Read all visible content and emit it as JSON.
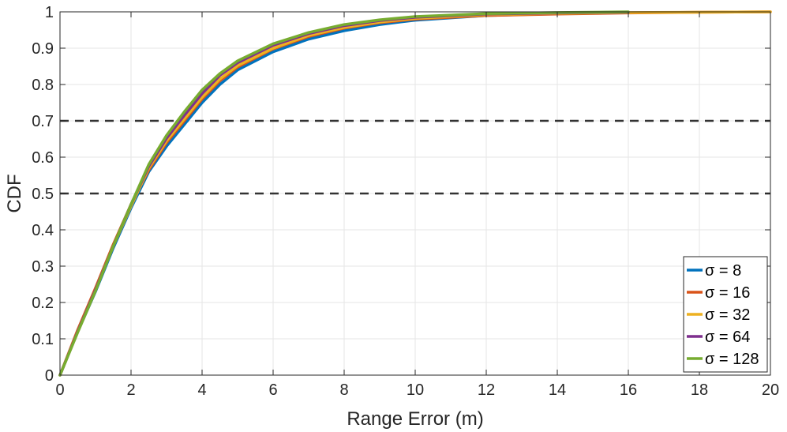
{
  "chart_data": {
    "type": "line",
    "xlabel": "Range Error (m)",
    "ylabel": "CDF",
    "xlim": [
      0,
      20
    ],
    "ylim": [
      0,
      1
    ],
    "x_ticks": [
      0,
      2,
      4,
      6,
      8,
      10,
      12,
      14,
      16,
      18,
      20
    ],
    "y_ticks": [
      0,
      0.1,
      0.2,
      0.3,
      0.4,
      0.5,
      0.6,
      0.7,
      0.8,
      0.9,
      1
    ],
    "grid": true,
    "legend_position": "bottom-right",
    "reference_lines": [
      {
        "y": 0.5,
        "style": "dashed",
        "color": "#333333"
      },
      {
        "y": 0.7,
        "style": "dashed",
        "color": "#333333"
      }
    ],
    "series": [
      {
        "name": "σ = 8",
        "color": "#0072BD",
        "x": [
          0,
          0.5,
          1,
          1.5,
          2,
          2.5,
          3,
          3.5,
          4,
          4.5,
          5,
          6,
          7,
          8,
          9,
          10,
          12,
          14,
          16
        ],
        "y": [
          0,
          0.12,
          0.23,
          0.35,
          0.46,
          0.56,
          0.63,
          0.69,
          0.75,
          0.8,
          0.84,
          0.89,
          0.925,
          0.948,
          0.965,
          0.977,
          0.99,
          0.995,
          0.998
        ]
      },
      {
        "name": "σ = 16",
        "color": "#D95319",
        "x": [
          0,
          0.5,
          1,
          1.5,
          2,
          2.5,
          3,
          3.5,
          4,
          4.5,
          5,
          6,
          7,
          8,
          9,
          10,
          12,
          14,
          16,
          18,
          20
        ],
        "y": [
          0,
          0.125,
          0.24,
          0.36,
          0.47,
          0.565,
          0.64,
          0.7,
          0.76,
          0.81,
          0.848,
          0.898,
          0.932,
          0.955,
          0.97,
          0.98,
          0.99,
          0.994,
          0.997,
          0.999,
          1
        ]
      },
      {
        "name": "σ = 32",
        "color": "#EDB120",
        "x": [
          0,
          0.5,
          1,
          1.5,
          2,
          2.5,
          3,
          3.5,
          4,
          4.5,
          5,
          6,
          7,
          8,
          9,
          10,
          12,
          14,
          16,
          18,
          20
        ],
        "y": [
          0,
          0.12,
          0.235,
          0.355,
          0.465,
          0.57,
          0.645,
          0.705,
          0.765,
          0.815,
          0.852,
          0.9,
          0.935,
          0.957,
          0.972,
          0.982,
          0.992,
          0.996,
          0.998,
          0.999,
          1
        ]
      },
      {
        "name": "σ = 64",
        "color": "#7E2F8E",
        "x": [
          0,
          0.5,
          1,
          1.5,
          2,
          2.5,
          3,
          3.5,
          4,
          4.5,
          5,
          6,
          7,
          8,
          9,
          10,
          12,
          14,
          16
        ],
        "y": [
          0,
          0.12,
          0.235,
          0.355,
          0.47,
          0.575,
          0.652,
          0.715,
          0.775,
          0.825,
          0.86,
          0.908,
          0.94,
          0.962,
          0.976,
          0.985,
          0.994,
          0.997,
          0.999
        ]
      },
      {
        "name": "σ = 128",
        "color": "#77AC30",
        "x": [
          0,
          0.5,
          1,
          1.5,
          2,
          2.5,
          3,
          3.5,
          4,
          4.5,
          5,
          6,
          7,
          8,
          9,
          10,
          12,
          14,
          16
        ],
        "y": [
          0,
          0.118,
          0.232,
          0.355,
          0.47,
          0.58,
          0.66,
          0.725,
          0.785,
          0.83,
          0.865,
          0.912,
          0.943,
          0.965,
          0.978,
          0.987,
          0.995,
          0.998,
          1
        ]
      }
    ]
  }
}
